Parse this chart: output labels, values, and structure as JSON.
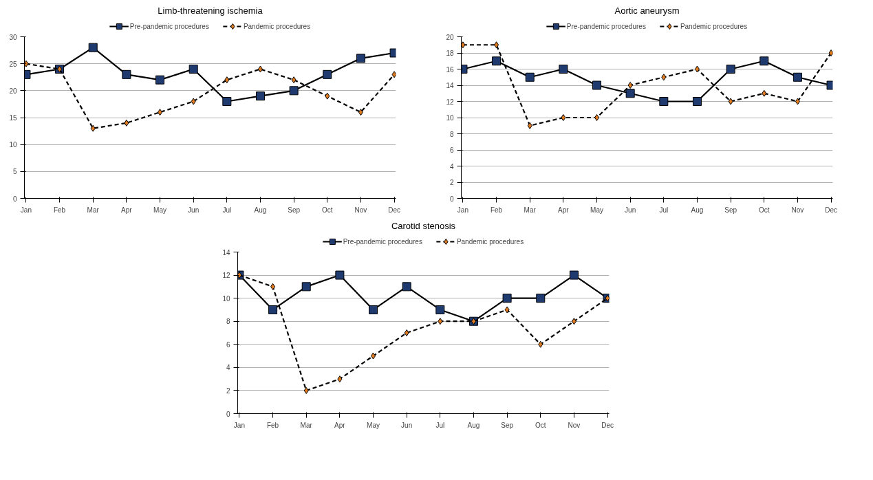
{
  "chart_data": [
    {
      "type": "line",
      "title": "Limb-threatening ischemia",
      "categories": [
        "Jan",
        "Feb",
        "Mar",
        "Apr",
        "May",
        "Jun",
        "Jul",
        "Aug",
        "Sep",
        "Oct",
        "Nov",
        "Dec"
      ],
      "ylim": [
        0,
        30
      ],
      "yticks": [
        0,
        5,
        10,
        15,
        20,
        25,
        30
      ],
      "grid": "y",
      "legend": "top",
      "series": [
        {
          "name": "Pre-pandemic procedures",
          "color": "#1f3a6e",
          "marker": "square",
          "line_style": "solid",
          "values": [
            23,
            24,
            28,
            23,
            22,
            24,
            18,
            19,
            20,
            23,
            26,
            27
          ]
        },
        {
          "name": "Pandemic procedures",
          "color": "#e07b20",
          "marker": "diamond",
          "line_style": "dashed",
          "values": [
            25,
            24,
            13,
            14,
            16,
            18,
            22,
            24,
            22,
            19,
            16,
            23
          ]
        }
      ]
    },
    {
      "type": "line",
      "title": "Aortic aneurysm",
      "categories": [
        "Jan",
        "Feb",
        "Mar",
        "Apr",
        "May",
        "Jun",
        "Jul",
        "Aug",
        "Sep",
        "Oct",
        "Nov",
        "Dec"
      ],
      "ylim": [
        0,
        20
      ],
      "yticks": [
        0,
        2,
        4,
        6,
        8,
        10,
        12,
        14,
        16,
        18,
        20
      ],
      "grid": "y",
      "legend": "top",
      "series": [
        {
          "name": "Pre-pandemic procedures",
          "color": "#1f3a6e",
          "marker": "square",
          "line_style": "solid",
          "values": [
            16,
            17,
            15,
            16,
            14,
            13,
            12,
            12,
            16,
            17,
            15,
            14
          ]
        },
        {
          "name": "Pandemic procedures",
          "color": "#e07b20",
          "marker": "diamond",
          "line_style": "dashed",
          "values": [
            19,
            19,
            9,
            10,
            10,
            14,
            15,
            16,
            12,
            13,
            12,
            18
          ]
        }
      ]
    },
    {
      "type": "line",
      "title": "Carotid stenosis",
      "categories": [
        "Jan",
        "Feb",
        "Mar",
        "Apr",
        "May",
        "Jun",
        "Jul",
        "Aug",
        "Sep",
        "Oct",
        "Nov",
        "Dec"
      ],
      "ylim": [
        0,
        14
      ],
      "yticks": [
        0,
        2,
        4,
        6,
        8,
        10,
        12,
        14
      ],
      "grid": "y",
      "legend": "top",
      "series": [
        {
          "name": "Pre-pandemic procedures",
          "color": "#1f3a6e",
          "marker": "square",
          "line_style": "solid",
          "values": [
            12,
            9,
            11,
            12,
            9,
            11,
            9,
            8,
            10,
            10,
            12,
            10
          ]
        },
        {
          "name": "Pandemic procedures",
          "color": "#e07b20",
          "marker": "diamond",
          "line_style": "dashed",
          "values": [
            12,
            11,
            2,
            3,
            5,
            7,
            8,
            8,
            9,
            6,
            8,
            10
          ]
        }
      ]
    }
  ]
}
